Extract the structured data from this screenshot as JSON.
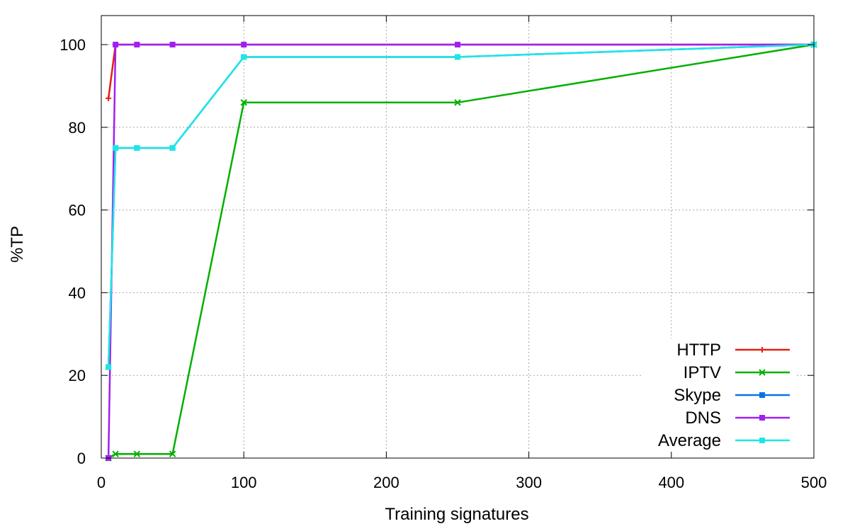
{
  "chart_data": {
    "type": "line",
    "xlabel": "Training signatures",
    "ylabel": "%TP",
    "xlim": [
      0,
      500
    ],
    "ylim": [
      0,
      100
    ],
    "xticks": [
      0,
      100,
      200,
      300,
      400,
      500
    ],
    "yticks": [
      0,
      20,
      40,
      60,
      80,
      100
    ],
    "grid": true,
    "legend_position": "bottom-right",
    "series": [
      {
        "name": "HTTP",
        "color": "#e51e10",
        "marker": "plus",
        "points": [
          [
            5,
            87
          ],
          [
            10,
            100
          ],
          [
            25,
            100
          ],
          [
            50,
            100
          ],
          [
            100,
            100
          ],
          [
            250,
            100
          ],
          [
            500,
            100
          ]
        ]
      },
      {
        "name": "IPTV",
        "color": "#00b000",
        "marker": "cross",
        "points": [
          [
            5,
            0
          ],
          [
            10,
            1
          ],
          [
            25,
            1
          ],
          [
            50,
            1
          ],
          [
            100,
            86
          ],
          [
            250,
            86
          ],
          [
            500,
            100
          ]
        ]
      },
      {
        "name": "Skype",
        "color": "#0b72e6",
        "marker": "square",
        "points": [
          [
            5,
            22
          ],
          [
            10,
            75
          ],
          [
            25,
            75
          ],
          [
            50,
            75
          ],
          [
            100,
            97
          ],
          [
            250,
            97
          ],
          [
            500,
            100
          ]
        ]
      },
      {
        "name": "DNS",
        "color": "#a020f0",
        "marker": "square",
        "points": [
          [
            5,
            0
          ],
          [
            10,
            100
          ],
          [
            25,
            100
          ],
          [
            50,
            100
          ],
          [
            100,
            100
          ],
          [
            250,
            100
          ],
          [
            500,
            100
          ]
        ]
      },
      {
        "name": "Average",
        "color": "#1ee6e6",
        "marker": "square",
        "points": [
          [
            5,
            22
          ],
          [
            10,
            75
          ],
          [
            25,
            75
          ],
          [
            50,
            75
          ],
          [
            100,
            97
          ],
          [
            250,
            97
          ],
          [
            500,
            100
          ]
        ]
      }
    ]
  }
}
